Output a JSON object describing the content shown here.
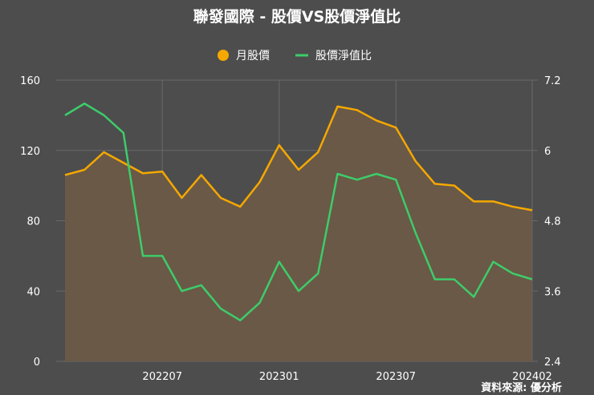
{
  "chart_data": {
    "type": "line",
    "title": "聯發國際 - 股價VS股價淨值比",
    "source": "資料來源: 優分析",
    "colors": {
      "background": "#4d4d4d",
      "price": "#f5a800",
      "pb": "#3dcc6a",
      "area": "#6b5a46",
      "grid": "#6a6a6a"
    },
    "legend_placement": "top-center",
    "grid": true,
    "x": [
      "202202",
      "202203",
      "202204",
      "202205",
      "202206",
      "202207",
      "202208",
      "202209",
      "202210",
      "202211",
      "202212",
      "202301",
      "202302",
      "202303",
      "202304",
      "202305",
      "202306",
      "202307",
      "202308",
      "202309",
      "202310",
      "202311",
      "202312",
      "202401",
      "202402"
    ],
    "x_tick_labels": [
      "202207",
      "202301",
      "202307",
      "202402"
    ],
    "y_left": {
      "ticks": [
        "0",
        "40",
        "80",
        "120",
        "160"
      ],
      "ylim": [
        0,
        160
      ]
    },
    "y_right": {
      "ticks": [
        "2.4",
        "3.6",
        "4.8",
        "6",
        "7.2"
      ],
      "ylim": [
        2.4,
        7.2
      ]
    },
    "series": [
      {
        "name": "月股價",
        "axis": "left",
        "style": "area-line-orange",
        "values": [
          106,
          109,
          119,
          113,
          107,
          108,
          93,
          106,
          93,
          88,
          102,
          123,
          109,
          119,
          145,
          143,
          137,
          133,
          114,
          101,
          100,
          91,
          91,
          88,
          86
        ]
      },
      {
        "name": "股價淨值比",
        "axis": "right",
        "style": "line-green",
        "values": [
          6.6,
          6.8,
          6.6,
          6.3,
          4.2,
          4.2,
          3.6,
          3.7,
          3.3,
          3.1,
          3.4,
          4.1,
          3.6,
          3.9,
          5.6,
          5.5,
          5.6,
          5.5,
          4.6,
          3.8,
          3.8,
          3.5,
          4.1,
          3.9,
          3.8
        ]
      }
    ]
  }
}
